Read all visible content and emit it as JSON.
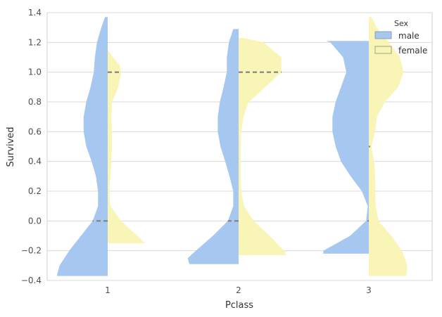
{
  "chart_data": {
    "type": "violin",
    "split": true,
    "xlabel": "Pclass",
    "ylabel": "Survived",
    "categories": [
      "1",
      "2",
      "3"
    ],
    "ylim": [
      -0.4,
      1.4
    ],
    "yticks": [
      -0.4,
      -0.2,
      0.0,
      0.2,
      0.4,
      0.6,
      0.8,
      1.0,
      1.2,
      1.4
    ],
    "ytick_labels": [
      "−0.4",
      "−0.2",
      "0.0",
      "0.2",
      "0.4",
      "0.6",
      "0.8",
      "1.0",
      "1.2",
      "1.4"
    ],
    "grid": "horizontal",
    "legend": {
      "title": "Sex",
      "position": "top-right"
    },
    "series": [
      {
        "name": "male",
        "side": "left",
        "color": "#a6c8f0",
        "violins": [
          {
            "category": "1",
            "min": -0.37,
            "max": 1.37,
            "median": 0.0,
            "inner": "dashed",
            "profile": [
              [
                -0.37,
                0.95
              ],
              [
                -0.3,
                0.9
              ],
              [
                -0.2,
                0.72
              ],
              [
                -0.1,
                0.5
              ],
              [
                0.0,
                0.28
              ],
              [
                0.1,
                0.18
              ],
              [
                0.2,
                0.18
              ],
              [
                0.3,
                0.22
              ],
              [
                0.4,
                0.3
              ],
              [
                0.5,
                0.4
              ],
              [
                0.6,
                0.45
              ],
              [
                0.7,
                0.45
              ],
              [
                0.8,
                0.4
              ],
              [
                0.9,
                0.32
              ],
              [
                1.0,
                0.26
              ],
              [
                1.1,
                0.24
              ],
              [
                1.2,
                0.2
              ],
              [
                1.3,
                0.12
              ],
              [
                1.37,
                0.05
              ]
            ]
          },
          {
            "category": "2",
            "min": -0.29,
            "max": 1.29,
            "median": 0.0,
            "inner": "dashed",
            "profile": [
              [
                -0.29,
                0.92
              ],
              [
                -0.25,
                0.95
              ],
              [
                -0.2,
                0.8
              ],
              [
                -0.1,
                0.48
              ],
              [
                0.0,
                0.2
              ],
              [
                0.1,
                0.1
              ],
              [
                0.2,
                0.1
              ],
              [
                0.3,
                0.17
              ],
              [
                0.4,
                0.25
              ],
              [
                0.5,
                0.34
              ],
              [
                0.6,
                0.39
              ],
              [
                0.7,
                0.39
              ],
              [
                0.8,
                0.35
              ],
              [
                0.9,
                0.28
              ],
              [
                1.0,
                0.22
              ],
              [
                1.1,
                0.22
              ],
              [
                1.2,
                0.18
              ],
              [
                1.29,
                0.1
              ]
            ]
          },
          {
            "category": "3",
            "min": -0.22,
            "max": 1.21,
            "median": 0.0,
            "inner": "dotted",
            "profile": [
              [
                -0.22,
                0.85
              ],
              [
                -0.2,
                0.85
              ],
              [
                -0.15,
                0.6
              ],
              [
                -0.1,
                0.35
              ],
              [
                0.0,
                0.05
              ],
              [
                0.1,
                0.02
              ],
              [
                0.2,
                0.13
              ],
              [
                0.3,
                0.34
              ],
              [
                0.4,
                0.52
              ],
              [
                0.5,
                0.62
              ],
              [
                0.6,
                0.68
              ],
              [
                0.7,
                0.68
              ],
              [
                0.8,
                0.62
              ],
              [
                0.9,
                0.52
              ],
              [
                1.0,
                0.42
              ],
              [
                1.1,
                0.48
              ],
              [
                1.2,
                0.72
              ],
              [
                1.21,
                0.8
              ]
            ]
          }
        ]
      },
      {
        "name": "female",
        "side": "right",
        "color": "#f9f5b7",
        "violins": [
          {
            "category": "1",
            "min": -0.15,
            "max": 1.15,
            "median": 1.0,
            "inner": "dashed",
            "profile": [
              [
                -0.15,
                0.7
              ],
              [
                -0.1,
                0.55
              ],
              [
                0.0,
                0.25
              ],
              [
                0.1,
                0.05
              ],
              [
                0.2,
                0.03
              ],
              [
                0.3,
                0.05
              ],
              [
                0.4,
                0.07
              ],
              [
                0.5,
                0.08
              ],
              [
                0.6,
                0.08
              ],
              [
                0.7,
                0.07
              ],
              [
                0.8,
                0.08
              ],
              [
                0.9,
                0.2
              ],
              [
                1.0,
                0.25
              ],
              [
                1.05,
                0.22
              ],
              [
                1.1,
                0.1
              ],
              [
                1.15,
                0.0
              ]
            ]
          },
          {
            "category": "2",
            "min": -0.23,
            "max": 1.23,
            "median": 1.0,
            "inner": "dashed",
            "profile": [
              [
                -0.23,
                0.9
              ],
              [
                -0.2,
                0.85
              ],
              [
                -0.1,
                0.58
              ],
              [
                0.0,
                0.28
              ],
              [
                0.1,
                0.1
              ],
              [
                0.2,
                0.05
              ],
              [
                0.3,
                0.04
              ],
              [
                0.4,
                0.04
              ],
              [
                0.5,
                0.04
              ],
              [
                0.6,
                0.05
              ],
              [
                0.7,
                0.09
              ],
              [
                0.8,
                0.19
              ],
              [
                0.9,
                0.5
              ],
              [
                1.0,
                0.8
              ],
              [
                1.1,
                0.8
              ],
              [
                1.2,
                0.46
              ],
              [
                1.23,
                0.1
              ]
            ]
          },
          {
            "category": "3",
            "min": -0.37,
            "max": 1.37,
            "median": 0.5,
            "inner": "dotted",
            "profile": [
              [
                -0.37,
                0.7
              ],
              [
                -0.3,
                0.72
              ],
              [
                -0.2,
                0.62
              ],
              [
                -0.1,
                0.42
              ],
              [
                0.0,
                0.18
              ],
              [
                0.1,
                0.13
              ],
              [
                0.2,
                0.12
              ],
              [
                0.3,
                0.12
              ],
              [
                0.4,
                0.1
              ],
              [
                0.5,
                0.05
              ],
              [
                0.6,
                0.12
              ],
              [
                0.7,
                0.15
              ],
              [
                0.8,
                0.3
              ],
              [
                0.9,
                0.55
              ],
              [
                1.0,
                0.65
              ],
              [
                1.1,
                0.58
              ],
              [
                1.2,
                0.38
              ],
              [
                1.3,
                0.15
              ],
              [
                1.37,
                0.05
              ]
            ]
          }
        ]
      }
    ]
  }
}
